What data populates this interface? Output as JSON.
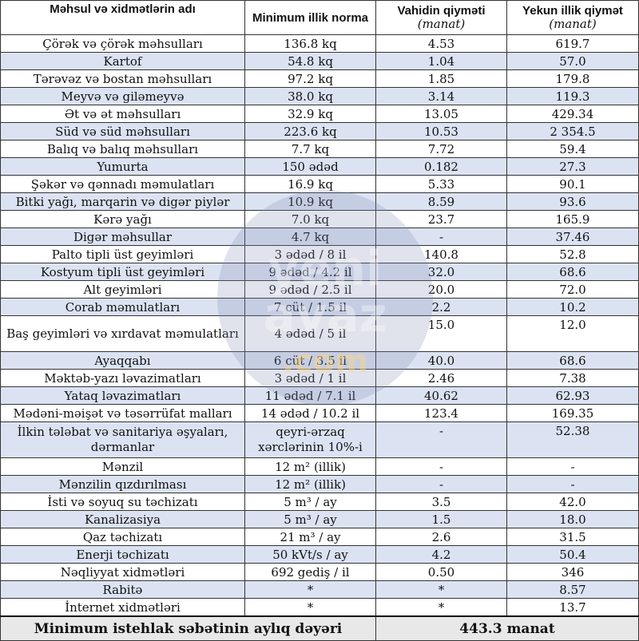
{
  "table": {
    "headers": {
      "name": "Məhsul və xidmətlərin adı",
      "norm": "Minimum illik norma",
      "unit_price": "Vahidin qiyməti",
      "unit_price_unit": "(manat)",
      "total": "Yekun illik qiymət",
      "total_unit": "(manat)"
    },
    "rows": [
      {
        "name": "Çörək və çörək məhsulları",
        "norm": "136.8 kq",
        "price": "4.53",
        "total": "619.7"
      },
      {
        "name": "Kartof",
        "norm": "54.8 kq",
        "price": "1.04",
        "total": "57.0"
      },
      {
        "name": "Tərəvəz və bostan məhsulları",
        "norm": "97.2 kq",
        "price": "1.85",
        "total": "179.8"
      },
      {
        "name": "Meyvə və giləmeyvə",
        "norm": "38.0 kq",
        "price": "3.14",
        "total": "119.3"
      },
      {
        "name": "Ət və ət məhsulları",
        "norm": "32.9 kq",
        "price": "13.05",
        "total": "429.34"
      },
      {
        "name": "Süd və süd məhsulları",
        "norm": "223.6 kq",
        "price": "10.53",
        "total": "2 354.5"
      },
      {
        "name": "Balıq və balıq məhsulları",
        "norm": "7.7 kq",
        "price": "7.72",
        "total": "59.4"
      },
      {
        "name": "Yumurta",
        "norm": "150 ədəd",
        "price": "0.182",
        "total": "27.3"
      },
      {
        "name": "Şəkər və qənnadı məmulatları",
        "norm": "16.9 kq",
        "price": "5.33",
        "total": "90.1"
      },
      {
        "name": "Bitki yağı, marqarin və digər piylər",
        "norm": "10.9 kq",
        "price": "8.59",
        "total": "93.6"
      },
      {
        "name": "Kərə yağı",
        "norm": "7.0 kq",
        "price": "23.7",
        "total": "165.9"
      },
      {
        "name": "Digər məhsullar",
        "norm": "4.7 kq",
        "price": "-",
        "total": "37.46"
      },
      {
        "name": "Palto tipli üst geyimləri",
        "norm": "3 ədəd / 8 il",
        "price": "140.8",
        "total": "52.8"
      },
      {
        "name": "Kostyum tipli üst geyimləri",
        "norm": "9 ədəd / 4.2 il",
        "price": "32.0",
        "total": "68.6"
      },
      {
        "name": "Alt geyimləri",
        "norm": "9 ədəd / 2.5 il",
        "price": "20.0",
        "total": "72.0"
      },
      {
        "name": "Corab məmulatları",
        "norm": "7 cüt / 1.5 il",
        "price": "2.2",
        "total": "10.2"
      },
      {
        "name": "Baş geyimləri və xırdavat məmulatları",
        "norm": "4 ədəd / 5 il",
        "price": "15.0",
        "total": "12.0",
        "tall": true
      },
      {
        "name": "Ayaqqabı",
        "norm": "6 cüt / 3.5 il",
        "price": "40.0",
        "total": "68.6"
      },
      {
        "name": "Məktəb-yazı ləvazimatları",
        "norm": "3 ədəd / 1 il",
        "price": "2.46",
        "total": "7.38"
      },
      {
        "name": "Yataq ləvazimatları",
        "norm": "11 ədəd / 7.1 il",
        "price": "40.62",
        "total": "62.93"
      },
      {
        "name": "Mədəni-məişət və təsərrüfat malları",
        "norm": "14 ədəd / 10.2 il",
        "price": "123.4",
        "total": "169.35"
      },
      {
        "name": "İlkin tələbat və sanitariya əşyaları, dərmanlar",
        "norm": "qeyri-ərzaq xərclərinin 10%-i",
        "price": "-",
        "total": "52.38",
        "tall": true
      },
      {
        "name": "Mənzil",
        "norm": "12 m² (illik)",
        "price": "-",
        "total": "-"
      },
      {
        "name": "Mənzilin qızdırılması",
        "norm": "12 m² (illik)",
        "price": "-",
        "total": "-"
      },
      {
        "name": "İsti və soyuq su təchizatı",
        "norm": "5 m³ / ay",
        "price": "3.5",
        "total": "42.0"
      },
      {
        "name": "Kanalizasiya",
        "norm": "5 m³ / ay",
        "price": "1.5",
        "total": "18.0"
      },
      {
        "name": "Qaz təchizatı",
        "norm": "21 m³ / ay",
        "price": "2.6",
        "total": "31.5"
      },
      {
        "name": "Enerji təchizatı",
        "norm": "50 kVt/s / ay",
        "price": "4.2",
        "total": "50.4"
      },
      {
        "name": "Nəqliyyat xidmətləri",
        "norm": "692 gediş / il",
        "price": "0.50",
        "total": "346"
      },
      {
        "name": "Rabitə",
        "norm": "*",
        "price": "*",
        "total": "8.57"
      },
      {
        "name": "İnternet xidmətləri",
        "norm": "*",
        "price": "*",
        "total": "13.7"
      }
    ],
    "footer": {
      "label": "Minimum istehlak səbətinin aylıq dəyəri",
      "value": "443.3 manat"
    }
  },
  "watermark": {
    "line1": "yeni",
    "line2": "avaz",
    "line3": ".com",
    "color": "#8c96b4"
  }
}
